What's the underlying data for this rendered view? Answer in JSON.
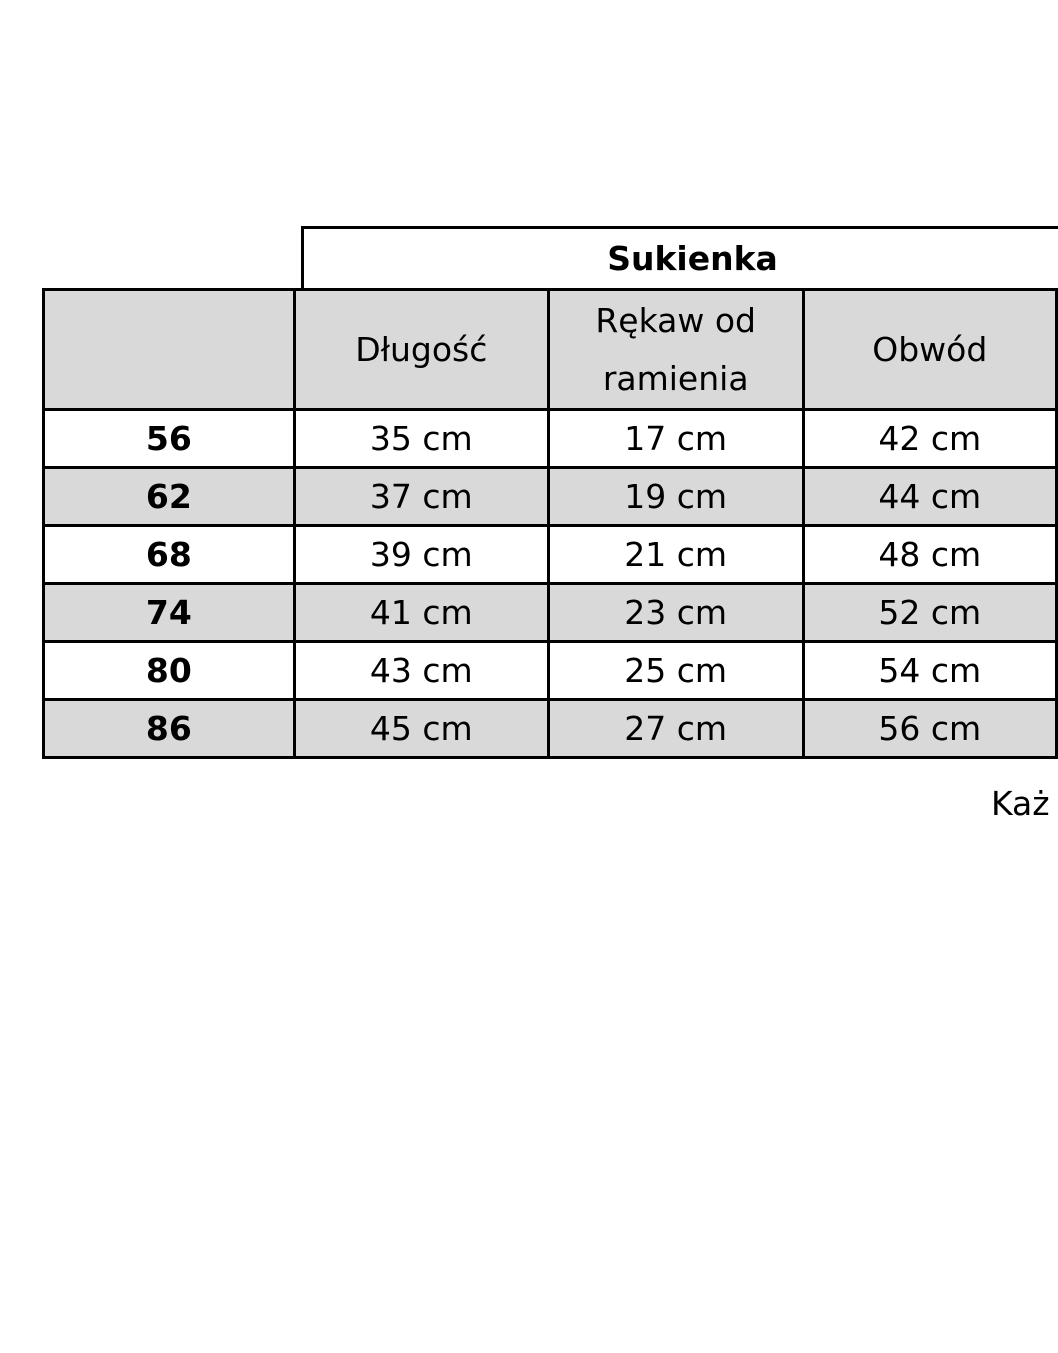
{
  "title": "Sukienka",
  "columns": [
    "",
    "Długość",
    "Rękaw od ramienia",
    "Obwód"
  ],
  "rows": [
    {
      "size": "56",
      "values": [
        "35 cm",
        "17 cm",
        "42 cm"
      ]
    },
    {
      "size": "62",
      "values": [
        "37 cm",
        "19 cm",
        "44 cm"
      ]
    },
    {
      "size": "68",
      "values": [
        "39 cm",
        "21 cm",
        "48 cm"
      ]
    },
    {
      "size": "74",
      "values": [
        "41 cm",
        "23 cm",
        "52 cm"
      ]
    },
    {
      "size": "80",
      "values": [
        "43 cm",
        "25 cm",
        "54 cm"
      ]
    },
    {
      "size": "86",
      "values": [
        "45 cm",
        "27 cm",
        "56 cm"
      ]
    }
  ],
  "note": "Każ",
  "colors": {
    "header_bg": "#d9d9d9",
    "border": "#000000"
  }
}
